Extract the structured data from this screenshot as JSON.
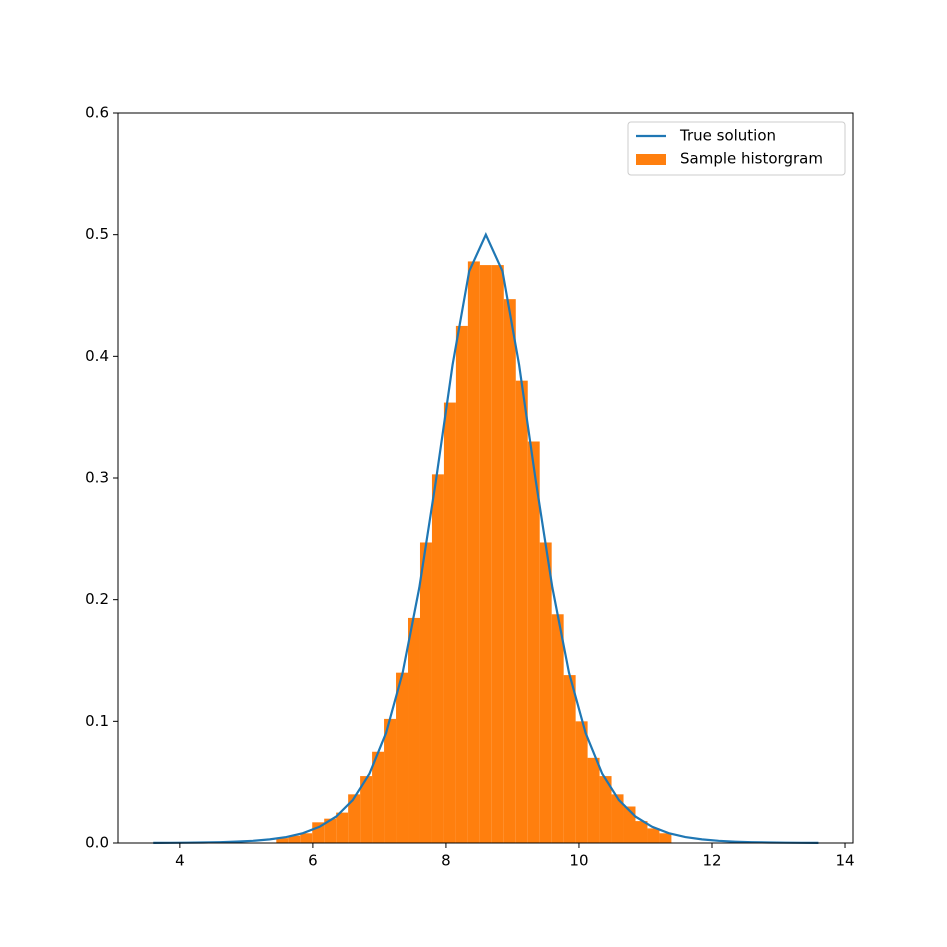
{
  "chart_data": {
    "type": "histogram",
    "xlim": [
      3.07,
      14.12
    ],
    "ylim": [
      0,
      0.6
    ],
    "xticks": [
      4,
      6,
      8,
      10,
      12,
      14
    ],
    "yticks": [
      {
        "value": 0,
        "label": "0.0"
      },
      0.1,
      0.2,
      0.3,
      0.4,
      0.5,
      0.6
    ],
    "grid": false,
    "legend": "upper right",
    "series": [
      {
        "type": "line",
        "name": "True solution",
        "color": "#1f77b4",
        "x": [
          3.6,
          3.85,
          4.1,
          4.35,
          4.6,
          4.85,
          5.1,
          5.35,
          5.6,
          5.85,
          6.1,
          6.35,
          6.6,
          6.85,
          7.1,
          7.35,
          7.6,
          7.85,
          8.1,
          8.35,
          8.6,
          8.85,
          9.1,
          9.35,
          9.6,
          9.85,
          10.1,
          10.35,
          10.6,
          10.85,
          11.1,
          11.35,
          11.6,
          11.85,
          12.1,
          12.35,
          12.6,
          12.85,
          13.1,
          13.35,
          13.6
        ],
        "values": [
          9e-05,
          0.00015,
          0.00025,
          0.00041,
          0.00067,
          0.0011,
          0.0018,
          0.003,
          0.0049,
          0.0081,
          0.0133,
          0.0217,
          0.0353,
          0.0569,
          0.0904,
          0.14,
          0.21,
          0.298,
          0.393,
          0.47,
          0.5,
          0.47,
          0.393,
          0.298,
          0.21,
          0.14,
          0.0904,
          0.0569,
          0.0353,
          0.0217,
          0.0133,
          0.0081,
          0.0049,
          0.003,
          0.0018,
          0.0011,
          0.00067,
          0.00041,
          0.00025,
          0.00015,
          9e-05
        ]
      },
      {
        "type": "histogram",
        "name": "Sample historgram",
        "color": "#ff7f0e",
        "bins": [
          5.45,
          5.63,
          5.81,
          5.99,
          6.17,
          6.35,
          6.53,
          6.71,
          6.89,
          7.07,
          7.25,
          7.43,
          7.61,
          7.79,
          7.97,
          8.15,
          8.33,
          8.51,
          8.69,
          8.87,
          9.05,
          9.23,
          9.41,
          9.59,
          9.77,
          9.95,
          10.13,
          10.31,
          10.49,
          10.67,
          10.85,
          11.03,
          11.21,
          11.39
        ],
        "values": [
          0.004,
          0.006,
          0.008,
          0.017,
          0.02,
          0.025,
          0.04,
          0.055,
          0.075,
          0.102,
          0.14,
          0.185,
          0.247,
          0.303,
          0.362,
          0.425,
          0.478,
          0.475,
          0.475,
          0.447,
          0.38,
          0.33,
          0.247,
          0.188,
          0.138,
          0.1,
          0.07,
          0.055,
          0.04,
          0.03,
          0.018,
          0.012,
          0.008
        ]
      }
    ]
  }
}
